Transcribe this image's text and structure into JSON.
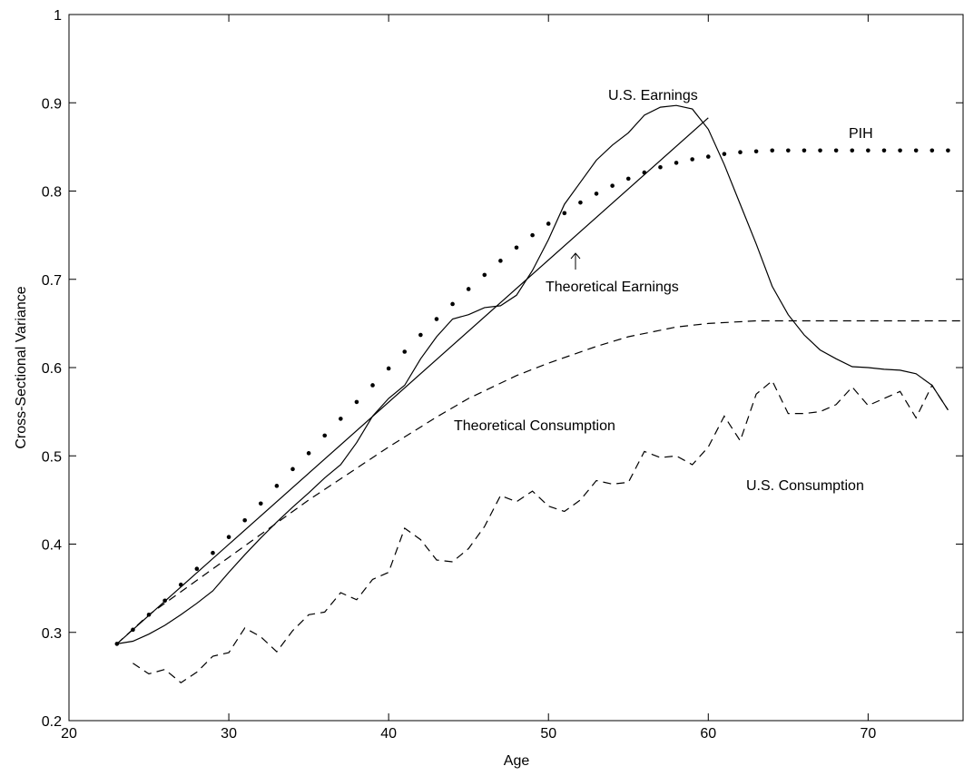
{
  "chart_data": {
    "type": "line",
    "xlabel": "Age",
    "ylabel": "Cross-Sectional Variance",
    "xlim": [
      20,
      76
    ],
    "ylim": [
      0.2,
      1
    ],
    "xticks": [
      20,
      30,
      40,
      50,
      60,
      70
    ],
    "yticks": [
      0.2,
      0.3,
      0.4,
      0.5,
      0.6,
      0.7,
      0.8,
      0.9,
      1
    ],
    "annotations": [
      "U.S. Earnings",
      "PIH",
      "Theoretical Earnings",
      "Theoretical Consumption",
      "U.S. Consumption"
    ],
    "series": [
      {
        "color": "#000000",
        "style": "solid",
        "x": [
          23,
          24,
          25,
          26,
          27,
          28,
          29,
          30,
          31,
          32,
          33,
          34,
          35,
          36,
          37,
          38,
          39,
          40,
          41,
          42,
          43,
          44,
          45,
          46,
          47,
          48,
          49,
          50,
          51,
          52,
          53,
          54,
          55,
          56,
          57,
          58,
          59,
          60,
          61,
          62,
          63,
          64,
          65,
          66,
          67,
          68,
          69,
          70,
          71,
          72,
          73,
          74,
          75
        ],
        "values": [
          0.287,
          0.29,
          0.298,
          0.308,
          0.32,
          0.333,
          0.347,
          0.368,
          0.388,
          0.407,
          0.425,
          0.442,
          0.458,
          0.475,
          0.49,
          0.515,
          0.545,
          0.565,
          0.58,
          0.61,
          0.635,
          0.655,
          0.66,
          0.668,
          0.67,
          0.682,
          0.71,
          0.745,
          0.785,
          0.81,
          0.835,
          0.852,
          0.866,
          0.886,
          0.895,
          0.897,
          0.893,
          0.87,
          0.83,
          0.785,
          0.74,
          0.692,
          0.66,
          0.637,
          0.62,
          0.61,
          0.601,
          0.6,
          0.598,
          0.597,
          0.593,
          0.58,
          0.552
        ]
      },
      {
        "color": "#000000",
        "style": "solid",
        "x": [
          23,
          60
        ],
        "values": [
          0.287,
          0.883
        ]
      },
      {
        "color": "#000000",
        "style": "dotted",
        "x": [
          23,
          24,
          25,
          26,
          27,
          28,
          29,
          30,
          31,
          32,
          33,
          34,
          35,
          36,
          37,
          38,
          39,
          40,
          41,
          42,
          43,
          44,
          45,
          46,
          47,
          48,
          49,
          50,
          51,
          52,
          53,
          54,
          55,
          56,
          57,
          58,
          59,
          60,
          61,
          62,
          63,
          64,
          65,
          66,
          67,
          68,
          69,
          70,
          71,
          72,
          73,
          74,
          75
        ],
        "values": [
          0.287,
          0.303,
          0.32,
          0.336,
          0.354,
          0.372,
          0.39,
          0.408,
          0.427,
          0.446,
          0.466,
          0.485,
          0.503,
          0.523,
          0.542,
          0.561,
          0.58,
          0.599,
          0.618,
          0.637,
          0.655,
          0.672,
          0.689,
          0.705,
          0.721,
          0.736,
          0.75,
          0.763,
          0.775,
          0.787,
          0.797,
          0.806,
          0.814,
          0.821,
          0.827,
          0.832,
          0.836,
          0.839,
          0.842,
          0.844,
          0.845,
          0.846,
          0.846,
          0.846,
          0.846,
          0.846,
          0.846,
          0.846,
          0.846,
          0.846,
          0.846,
          0.846,
          0.846
        ]
      },
      {
        "color": "#000000",
        "style": "dashed",
        "x": [
          23,
          25,
          27,
          30,
          33,
          35,
          38,
          40,
          43,
          45,
          48,
          50,
          53,
          55,
          58,
          60,
          63,
          65,
          70,
          76
        ],
        "values": [
          0.287,
          0.32,
          0.346,
          0.385,
          0.424,
          0.45,
          0.486,
          0.51,
          0.544,
          0.565,
          0.591,
          0.605,
          0.624,
          0.635,
          0.646,
          0.65,
          0.653,
          0.653,
          0.653,
          0.653
        ]
      },
      {
        "color": "#000000",
        "style": "dashed",
        "x": [
          24,
          25,
          26,
          27,
          28,
          29,
          30,
          31,
          32,
          33,
          34,
          35,
          36,
          37,
          38,
          39,
          40,
          41,
          42,
          43,
          44,
          45,
          46,
          47,
          48,
          49,
          50,
          51,
          52,
          53,
          54,
          55,
          56,
          57,
          58,
          59,
          60,
          61,
          62,
          63,
          64,
          65,
          66,
          67,
          68,
          69,
          70,
          71,
          72,
          73,
          74,
          75
        ],
        "values": [
          0.265,
          0.253,
          0.258,
          0.243,
          0.255,
          0.273,
          0.277,
          0.305,
          0.295,
          0.278,
          0.302,
          0.32,
          0.323,
          0.345,
          0.337,
          0.36,
          0.368,
          0.418,
          0.405,
          0.382,
          0.38,
          0.395,
          0.42,
          0.455,
          0.448,
          0.46,
          0.443,
          0.437,
          0.45,
          0.472,
          0.468,
          0.47,
          0.505,
          0.498,
          0.5,
          0.49,
          0.51,
          0.545,
          0.517,
          0.57,
          0.585,
          0.548,
          0.548,
          0.55,
          0.558,
          0.578,
          0.557,
          0.565,
          0.573,
          0.543,
          0.58,
          0.552
        ]
      }
    ]
  }
}
